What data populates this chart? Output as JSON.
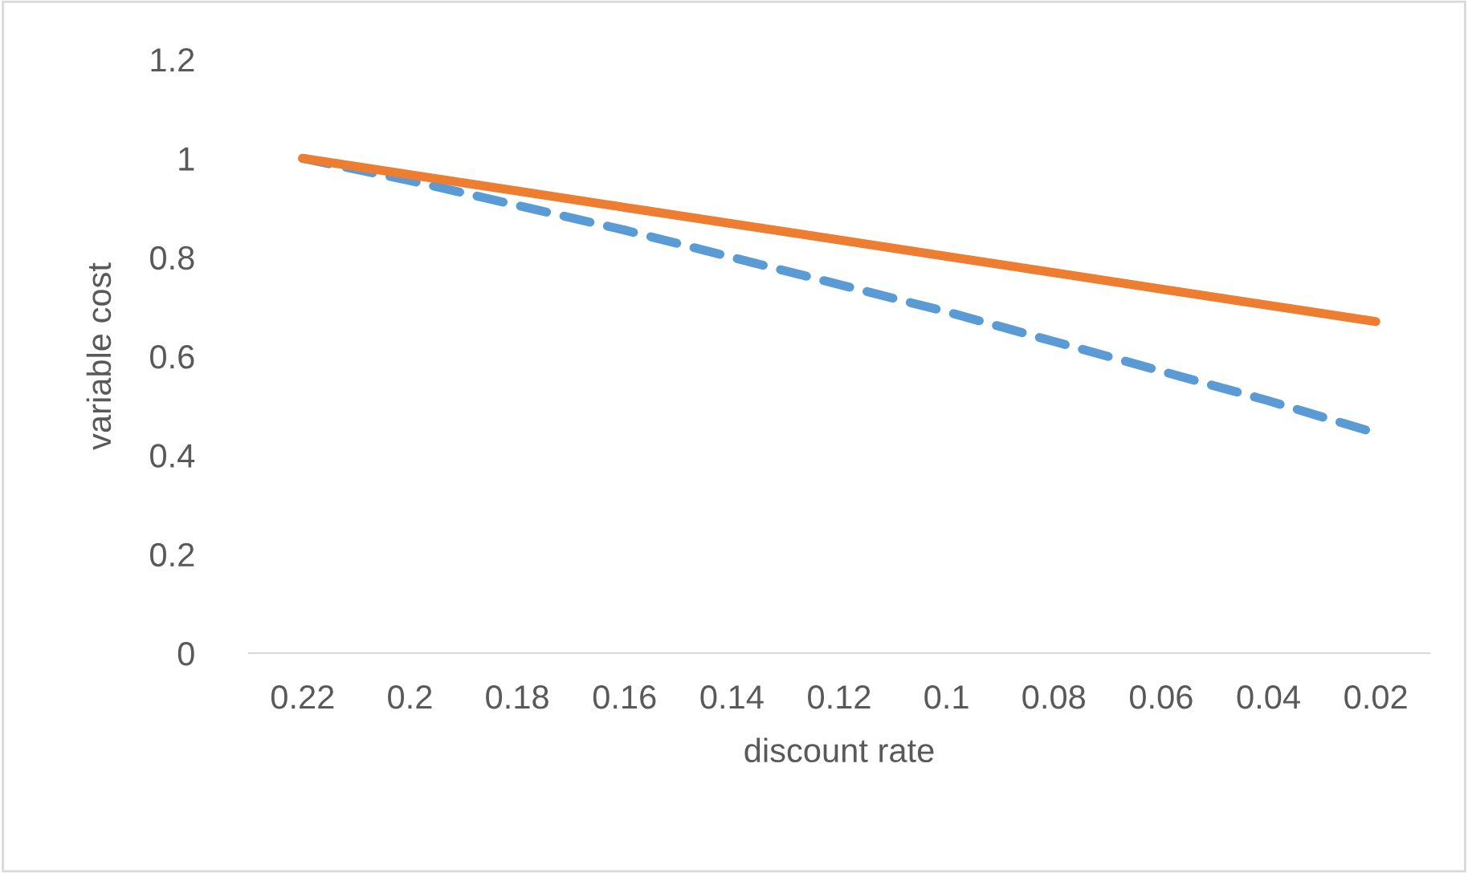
{
  "chart_data": {
    "type": "line",
    "xlabel": "discount rate",
    "ylabel": "variable cost",
    "categories": [
      "0.22",
      "0.2",
      "0.18",
      "0.16",
      "0.14",
      "0.12",
      "0.1",
      "0.08",
      "0.06",
      "0.04",
      "0.02"
    ],
    "series": [
      {
        "color": "#5b9bd5",
        "line_style": "dashed",
        "values": [
          1,
          0.955,
          0.905,
          0.855,
          0.8,
          0.745,
          0.69,
          0.63,
          0.57,
          0.51,
          0.445
        ]
      },
      {
        "color": "#ed7d31",
        "line_style": "solid",
        "values": [
          1,
          0.967,
          0.934,
          0.901,
          0.868,
          0.835,
          0.802,
          0.769,
          0.736,
          0.703,
          0.67
        ]
      }
    ],
    "ylim": [
      0,
      1.2
    ],
    "yticks": [
      0,
      0.2,
      0.4,
      0.6,
      0.8,
      1,
      1.2
    ],
    "grid": false,
    "marker": "none"
  }
}
